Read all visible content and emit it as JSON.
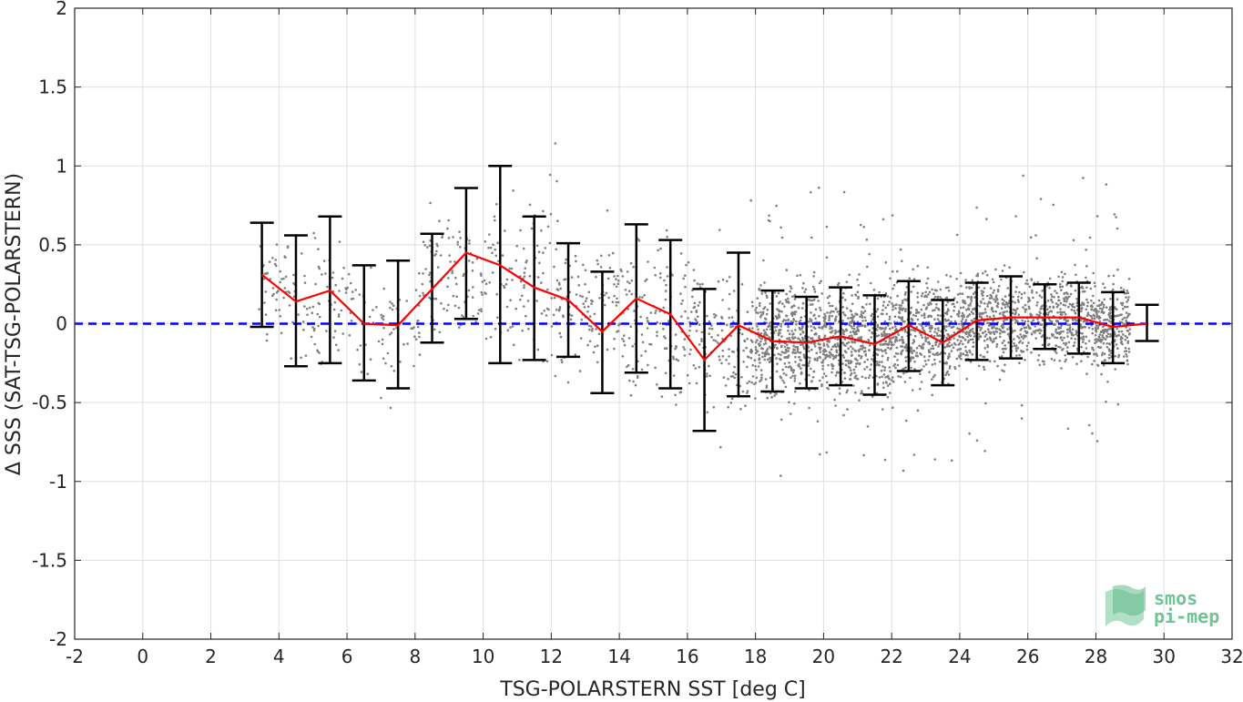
{
  "chart_data": {
    "type": "scatter",
    "title": "",
    "xlabel": "TSG-POLARSTERN SST [deg C]",
    "ylabel": "Δ SSS (SAT-TSG-POLARSTERN)",
    "xlim": [
      -2,
      32
    ],
    "ylim": [
      -2,
      2
    ],
    "x_ticks": [
      -2,
      0,
      2,
      4,
      6,
      8,
      10,
      12,
      14,
      16,
      18,
      20,
      22,
      24,
      26,
      28,
      30,
      32
    ],
    "y_ticks": [
      -2,
      -1.5,
      -1,
      -0.5,
      0,
      0.5,
      1,
      1.5,
      2
    ],
    "x_tick_labels": [
      "-2",
      "0",
      "2",
      "4",
      "6",
      "8",
      "10",
      "12",
      "14",
      "16",
      "18",
      "20",
      "22",
      "24",
      "26",
      "28",
      "30",
      "32"
    ],
    "y_tick_labels": [
      "-2",
      "-1.5",
      "-1",
      "-0.5",
      "0",
      "0.5",
      "1",
      "1.5",
      "2"
    ],
    "grid": true,
    "zero_line": {
      "y": 0,
      "color": "#0000ff",
      "style": "dashed"
    },
    "scatter": {
      "color": "#808080",
      "clusters": [
        {
          "x": [
            3.3,
            4.2
          ],
          "y_center": 0.25,
          "y_spread": 0.2,
          "count": 40
        },
        {
          "x": [
            4.2,
            6.2
          ],
          "y_center": 0.15,
          "y_spread": 0.3,
          "count": 90
        },
        {
          "x": [
            6.2,
            8.2
          ],
          "y_center": 0.0,
          "y_spread": 0.3,
          "count": 70
        },
        {
          "x": [
            8.2,
            10.2
          ],
          "y_center": 0.3,
          "y_spread": 0.3,
          "count": 110
        },
        {
          "x": [
            10.2,
            12.2
          ],
          "y_center": 0.25,
          "y_spread": 0.4,
          "count": 110
        },
        {
          "x": [
            12.2,
            14.2
          ],
          "y_center": 0.1,
          "y_spread": 0.35,
          "count": 130
        },
        {
          "x": [
            14.2,
            16.2
          ],
          "y_center": 0.05,
          "y_spread": 0.4,
          "count": 140
        },
        {
          "x": [
            16.2,
            18.0
          ],
          "y_center": -0.1,
          "y_spread": 0.35,
          "count": 160
        },
        {
          "x": [
            18.0,
            20.0
          ],
          "y_center": -0.1,
          "y_spread": 0.28,
          "count": 520
        },
        {
          "x": [
            20.0,
            22.0
          ],
          "y_center": -0.1,
          "y_spread": 0.28,
          "count": 520
        },
        {
          "x": [
            22.0,
            24.0
          ],
          "y_center": -0.05,
          "y_spread": 0.25,
          "count": 480
        },
        {
          "x": [
            24.0,
            26.0
          ],
          "y_center": 0.02,
          "y_spread": 0.24,
          "count": 460
        },
        {
          "x": [
            26.0,
            28.0
          ],
          "y_center": 0.03,
          "y_spread": 0.22,
          "count": 420
        },
        {
          "x": [
            28.0,
            29.0
          ],
          "y_center": -0.02,
          "y_spread": 0.22,
          "count": 260
        }
      ]
    },
    "series": [
      {
        "color": "#ff0000",
        "x": [
          3.5,
          4.5,
          5.5,
          6.5,
          7.5,
          8.5,
          9.5,
          10.5,
          11.5,
          12.5,
          13.5,
          14.5,
          15.5,
          16.5,
          17.5,
          18.5,
          19.5,
          20.5,
          21.5,
          22.5,
          23.5,
          24.5,
          25.5,
          26.5,
          27.5,
          28.5,
          29.5
        ],
        "y": [
          0.31,
          0.14,
          0.21,
          0.0,
          -0.01,
          0.22,
          0.45,
          0.37,
          0.23,
          0.15,
          -0.05,
          0.16,
          0.06,
          -0.23,
          -0.01,
          -0.11,
          -0.12,
          -0.08,
          -0.13,
          -0.01,
          -0.12,
          0.02,
          0.04,
          0.04,
          0.04,
          -0.02,
          0.0
        ],
        "err_low": [
          -0.02,
          -0.27,
          -0.25,
          -0.36,
          -0.41,
          -0.12,
          0.03,
          -0.25,
          -0.23,
          -0.21,
          -0.44,
          -0.31,
          -0.41,
          -0.68,
          -0.46,
          -0.43,
          -0.41,
          -0.39,
          -0.45,
          -0.3,
          -0.39,
          -0.23,
          -0.22,
          -0.16,
          -0.19,
          -0.25,
          -0.11
        ],
        "err_high": [
          0.64,
          0.56,
          0.68,
          0.37,
          0.4,
          0.57,
          0.86,
          1.0,
          0.68,
          0.51,
          0.33,
          0.63,
          0.53,
          0.22,
          0.45,
          0.21,
          0.17,
          0.23,
          0.18,
          0.27,
          0.15,
          0.26,
          0.3,
          0.25,
          0.26,
          0.2,
          0.12
        ]
      }
    ]
  },
  "logo": {
    "line1": "smos",
    "line2": "pi-mep",
    "color_light": "#9fd8b6",
    "color_dark": "#5fb98a"
  }
}
